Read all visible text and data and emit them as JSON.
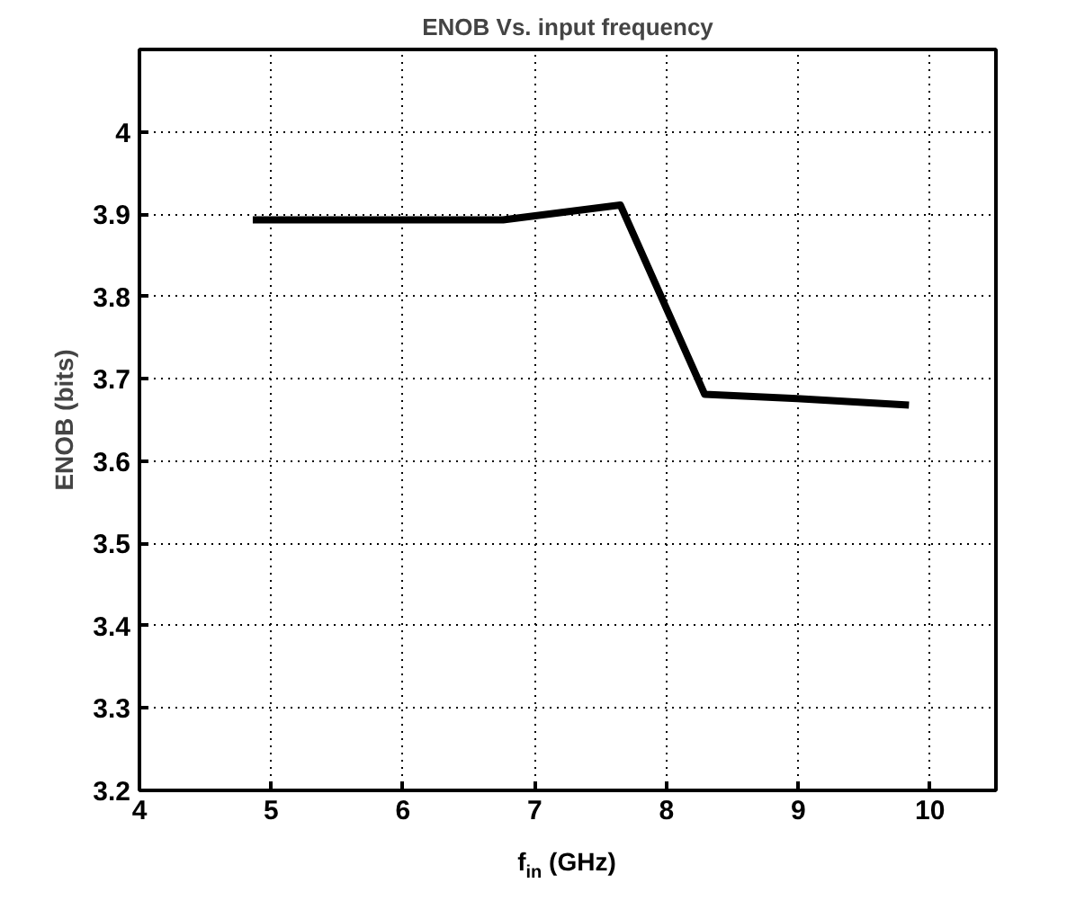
{
  "chart_data": {
    "type": "line",
    "title": "ENOB Vs. input frequency",
    "xlabel": "f$_{in}$ (GHz)",
    "ylabel": "ENOB (bits)",
    "x": [
      4.86,
      6.76,
      7.65,
      8.29,
      8.99,
      9.84
    ],
    "series": [
      {
        "color": "#000000",
        "values": [
          3.893,
          3.893,
          3.911,
          3.681,
          3.676,
          3.668
        ]
      }
    ],
    "xlim": [
      4,
      10.5
    ],
    "xticks": [
      4,
      5,
      6,
      7,
      8,
      9,
      10
    ],
    "ylim": [
      3.2,
      4.1
    ],
    "yticks": [
      3.2,
      3.3,
      3.4,
      3.5,
      3.6,
      3.7,
      3.8,
      3.9,
      4
    ],
    "grid": true,
    "line_style": "solid"
  }
}
